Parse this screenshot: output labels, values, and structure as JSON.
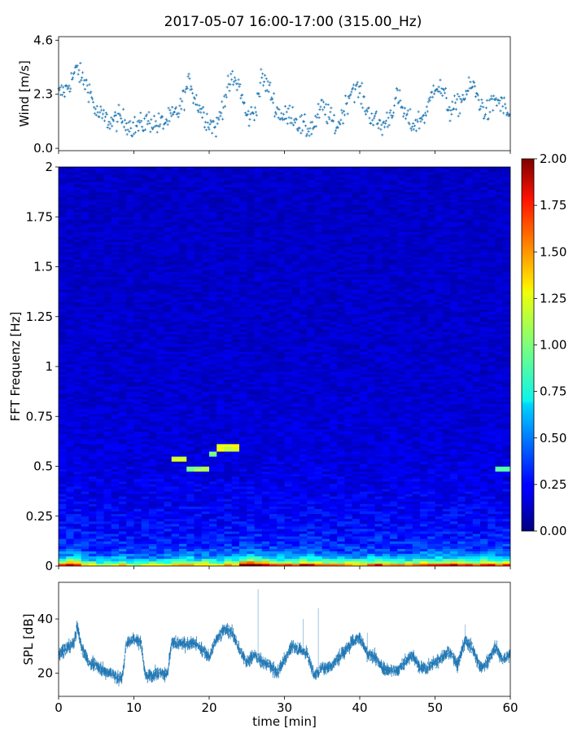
{
  "title": "2017-05-07 16:00-17:00 (315.00_Hz)",
  "chart_data": [
    {
      "type": "scatter",
      "panel": "wind",
      "ylabel": "Wind [m/s]",
      "ytick_labels": [
        "0.0",
        "2.3",
        "4.6"
      ],
      "yticks": [
        0.0,
        2.3,
        4.6
      ],
      "ylim": [
        -0.1,
        4.75
      ],
      "xlim": [
        0,
        60
      ],
      "color": "#1f77b4",
      "marker": "+",
      "x_step_min": 0.1,
      "envelope": {
        "t": [
          0,
          1,
          2,
          2.5,
          3,
          4,
          5,
          6,
          7,
          8,
          9,
          10,
          11,
          12,
          13,
          14,
          15,
          16,
          17,
          17.5,
          18,
          19,
          20,
          21,
          22,
          23,
          24,
          25,
          26,
          27,
          28,
          29,
          30,
          31,
          32,
          33,
          34,
          35,
          36,
          37,
          38,
          39,
          40,
          41,
          42,
          43,
          44,
          45,
          46,
          47,
          48,
          49,
          50,
          51,
          52,
          53,
          54,
          55,
          56,
          57,
          58,
          59,
          60
        ],
        "y": [
          2.3,
          2.5,
          3.1,
          3.4,
          3.0,
          2.6,
          1.5,
          1.3,
          1.1,
          1.3,
          1.1,
          0.9,
          1.0,
          1.2,
          1.0,
          1.1,
          1.3,
          1.6,
          2.5,
          2.9,
          2.2,
          1.6,
          1.1,
          0.9,
          2.1,
          2.9,
          2.7,
          1.3,
          1.5,
          3.0,
          2.5,
          1.6,
          1.3,
          1.5,
          1.0,
          0.8,
          1.0,
          1.8,
          1.3,
          0.9,
          1.7,
          2.6,
          2.4,
          1.6,
          1.2,
          0.9,
          1.4,
          2.2,
          1.4,
          1.0,
          1.2,
          1.6,
          2.8,
          2.4,
          1.6,
          1.8,
          2.3,
          2.7,
          1.9,
          1.5,
          2.1,
          1.8,
          1.3
        ]
      },
      "spread": 0.45
    },
    {
      "type": "heatmap",
      "panel": "spectrogram",
      "ylabel": "FFT Frequenz [Hz]",
      "ytick_labels": [
        "0",
        "0.25",
        "0.5",
        "0.75",
        "1",
        "1.25",
        "1.5",
        "1.75",
        "2"
      ],
      "yticks": [
        0,
        0.25,
        0.5,
        0.75,
        1,
        1.25,
        1.5,
        1.75,
        2
      ],
      "ylim": [
        0,
        2
      ],
      "xlim": [
        0,
        60
      ],
      "colormap": "jet",
      "clim": [
        0,
        2
      ],
      "colorbar_tick_labels": [
        "0.00",
        "0.25",
        "0.50",
        "0.75",
        "1.00",
        "1.25",
        "1.50",
        "1.75",
        "2.00"
      ],
      "colorbar_ticks": [
        0,
        0.25,
        0.5,
        0.75,
        1.0,
        1.25,
        1.5,
        1.75,
        2.0
      ],
      "n_time_bins": 60,
      "n_freq_bins": 160,
      "time_activity": [
        0.9,
        1.1,
        1.0,
        0.8,
        0.7,
        0.6,
        0.6,
        0.7,
        0.8,
        0.6,
        0.5,
        0.6,
        0.7,
        0.6,
        0.7,
        0.8,
        0.9,
        0.9,
        0.8,
        0.8,
        0.7,
        0.7,
        0.9,
        0.8,
        1.2,
        1.3,
        1.2,
        1.1,
        1.0,
        0.9,
        0.9,
        0.9,
        1.1,
        1.0,
        1.0,
        0.9,
        0.8,
        0.8,
        0.9,
        0.8,
        0.8,
        0.9,
        1.0,
        0.9,
        0.8,
        0.8,
        0.8,
        0.9,
        1.0,
        1.0,
        0.9,
        1.0,
        1.1,
        1.0,
        0.9,
        0.9,
        1.0,
        1.0,
        0.9,
        1.0
      ],
      "features": [
        {
          "t0": 14.8,
          "t1": 17.2,
          "f": 0.535,
          "value": 1.15
        },
        {
          "t0": 17.2,
          "t1": 20.0,
          "f": 0.49,
          "value": 1.05
        },
        {
          "t0": 20.0,
          "t1": 21.2,
          "f": 0.565,
          "value": 0.95
        },
        {
          "t0": 21.2,
          "t1": 24.0,
          "f": 0.595,
          "value": 1.2
        },
        {
          "t0": 57.8,
          "t1": 60.0,
          "f": 0.49,
          "value": 0.9
        }
      ]
    },
    {
      "type": "line",
      "panel": "spl",
      "ylabel": "SPL [dB]",
      "xlabel": "time [min]",
      "ytick_labels": [
        "20",
        "40"
      ],
      "yticks": [
        20,
        40
      ],
      "ylim": [
        11.5,
        53.5
      ],
      "xlim": [
        0,
        60
      ],
      "xtick_labels": [
        "0",
        "10",
        "20",
        "30",
        "40",
        "50",
        "60"
      ],
      "xticks": [
        0,
        10,
        20,
        30,
        40,
        50,
        60
      ],
      "color": "#1f77b4",
      "envelope": {
        "t": [
          0,
          1,
          2,
          2.5,
          3,
          4,
          5,
          6,
          7,
          8,
          8.5,
          9,
          10,
          11,
          11.5,
          12,
          13,
          14,
          14.5,
          15,
          16,
          17,
          18,
          19,
          20,
          21,
          22,
          23,
          24,
          25,
          26,
          27,
          28,
          29,
          30,
          31,
          32,
          33,
          34,
          35,
          36,
          37,
          38,
          39,
          40,
          41,
          42,
          43,
          44,
          45,
          46,
          47,
          48,
          49,
          50,
          51,
          52,
          53,
          54,
          55,
          56,
          57,
          58,
          59,
          60
        ],
        "y": [
          27,
          29,
          31,
          37,
          30,
          24,
          23,
          21,
          20,
          18,
          19,
          31,
          33,
          31,
          19,
          19,
          20,
          20,
          20,
          31,
          31,
          31,
          31,
          29,
          26,
          33,
          36,
          35,
          29,
          24,
          27,
          24,
          23,
          20,
          25,
          30,
          29,
          27,
          19,
          22,
          22,
          25,
          28,
          32,
          33,
          27,
          26,
          22,
          21,
          21,
          24,
          27,
          22,
          22,
          24,
          26,
          28,
          23,
          32,
          29,
          22,
          24,
          30,
          25,
          27
        ]
      },
      "spikes": [
        {
          "t": 26.5,
          "y": 51
        },
        {
          "t": 34.5,
          "y": 44
        },
        {
          "t": 32.5,
          "y": 40
        },
        {
          "t": 54.0,
          "y": 38
        },
        {
          "t": 41.0,
          "y": 35
        }
      ]
    }
  ]
}
